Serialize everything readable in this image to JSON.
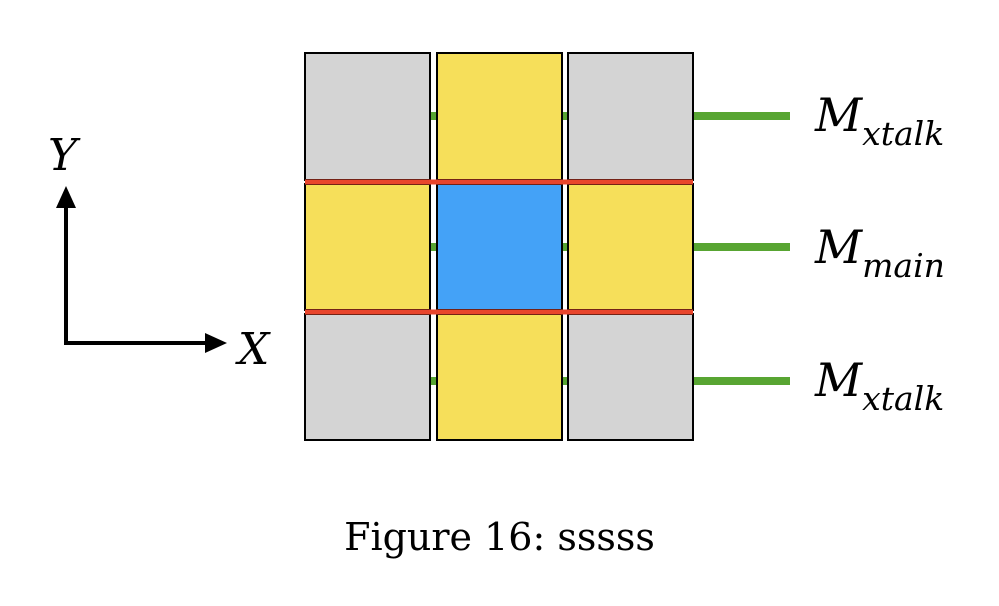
{
  "axes": {
    "y_label": "Y",
    "x_label": "X"
  },
  "rows": [
    {
      "label_main": "M",
      "label_sub": "xtalk",
      "cells": [
        "corner",
        "adjacent",
        "corner"
      ]
    },
    {
      "label_main": "M",
      "label_sub": "main",
      "cells": [
        "adjacent",
        "center",
        "adjacent"
      ]
    },
    {
      "label_main": "M",
      "label_sub": "xtalk",
      "cells": [
        "corner",
        "adjacent",
        "corner"
      ]
    }
  ],
  "colors": {
    "corner": "#d4d4d4",
    "adjacent": "#f6df5a",
    "center": "#44a2f7",
    "line_green": "#58a532",
    "line_red": "#e8452c",
    "cell_border": "#000000"
  },
  "caption": {
    "prefix": "Figure 16:",
    "text": "sssss"
  }
}
